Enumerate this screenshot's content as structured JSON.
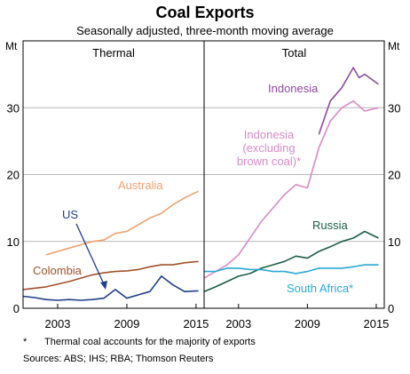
{
  "chart_data": {
    "title": "Coal Exports",
    "subtitle": "Seasonally adjusted, three-month moving average",
    "unit_left": "Mt",
    "unit_right": "Mt",
    "y_ticks": [
      0,
      10,
      20,
      30
    ],
    "ylim": [
      0,
      40
    ],
    "footnote_marker": "*",
    "footnote": "Thermal coal accounts for the majority of exports",
    "sources": "Sources:  ABS; IHS; RBA; Thomson Reuters",
    "colors": {
      "australia": "#F0A070",
      "us": "#1F3E8C",
      "colombia": "#A0522D",
      "indonesia": "#8E4A9E",
      "indonesia_ex": "#D78AC8",
      "russia": "#1E5E45",
      "south_africa": "#2BA8D8"
    },
    "panels": [
      {
        "title": "Thermal",
        "type": "line",
        "x_ticks": [
          "2003",
          "2009",
          "2015"
        ],
        "x_tick_values": [
          2003,
          2009,
          2015
        ],
        "xlim": [
          2000,
          2015.7
        ],
        "series": [
          {
            "key": "australia",
            "name": "Australia",
            "x": [
              2002,
              2003,
              2004,
              2005,
              2006,
              2007,
              2008,
              2009,
              2010,
              2011,
              2012,
              2013,
              2014,
              2015.2
            ],
            "values": [
              8,
              8.5,
              9,
              9.5,
              10,
              10.2,
              11.2,
              11.5,
              12.5,
              13.5,
              14.2,
              15.5,
              16.5,
              17.5
            ]
          },
          {
            "key": "colombia",
            "name": "Colombia",
            "x": [
              2000,
              2001,
              2002,
              2003,
              2004,
              2005,
              2006,
              2007,
              2008,
              2009,
              2010,
              2011,
              2012,
              2013,
              2014,
              2015.2
            ],
            "values": [
              2.8,
              3.0,
              3.2,
              3.6,
              4.0,
              4.5,
              5.0,
              5.3,
              5.5,
              5.6,
              5.8,
              6.2,
              6.5,
              6.5,
              6.8,
              7.0
            ]
          },
          {
            "key": "us",
            "name": "US",
            "x": [
              2000,
              2001,
              2002,
              2003,
              2004,
              2005,
              2006,
              2007,
              2008,
              2009,
              2010,
              2011,
              2012,
              2013,
              2014,
              2015.2
            ],
            "values": [
              1.8,
              1.6,
              1.3,
              1.2,
              1.3,
              1.2,
              1.3,
              1.5,
              2.8,
              1.5,
              2.0,
              2.5,
              4.8,
              3.5,
              2.5,
              2.6
            ]
          }
        ],
        "labels": [
          {
            "series": "australia",
            "text": "Australia"
          },
          {
            "series": "us",
            "text": "US"
          },
          {
            "series": "colombia",
            "text": "Colombia"
          }
        ]
      },
      {
        "title": "Total",
        "type": "line",
        "x_ticks": [
          "2003",
          "2009",
          "2015"
        ],
        "x_tick_values": [
          2003,
          2009,
          2015
        ],
        "xlim": [
          2000,
          2015.7
        ],
        "series": [
          {
            "key": "indonesia",
            "name": "Indonesia",
            "x": [
              2010,
              2011,
              2012,
              2013,
              2013.5,
              2014,
              2015.2
            ],
            "values": [
              26,
              31,
              33,
              36,
              34.5,
              35,
              33.5
            ]
          },
          {
            "key": "indonesia_ex",
            "name": "Indonesia (excluding brown coal)*",
            "x": [
              2000,
              2001,
              2002,
              2003,
              2004,
              2005,
              2006,
              2007,
              2008,
              2009,
              2010,
              2011,
              2012,
              2013,
              2014,
              2015.2
            ],
            "values": [
              4.5,
              5.5,
              6.5,
              8,
              10.5,
              13,
              15,
              17,
              18.5,
              18,
              24,
              28,
              30,
              31,
              29.5,
              30
            ]
          },
          {
            "key": "russia",
            "name": "Russia",
            "x": [
              2000,
              2001,
              2002,
              2003,
              2004,
              2005,
              2006,
              2007,
              2008,
              2009,
              2010,
              2011,
              2012,
              2013,
              2014,
              2015.2
            ],
            "values": [
              2.5,
              3.2,
              4.0,
              4.8,
              5.2,
              6.0,
              6.5,
              7.0,
              7.8,
              7.5,
              8.5,
              9.2,
              10.0,
              10.5,
              11.5,
              10.5
            ]
          },
          {
            "key": "south_africa",
            "name": "South Africa*",
            "x": [
              2000,
              2001,
              2002,
              2003,
              2004,
              2005,
              2006,
              2007,
              2008,
              2009,
              2010,
              2011,
              2012,
              2013,
              2014,
              2015.2
            ],
            "values": [
              5.5,
              5.5,
              6.0,
              6.0,
              5.8,
              5.8,
              5.5,
              5.5,
              5.2,
              5.5,
              6.0,
              6.0,
              6.0,
              6.2,
              6.5,
              6.5
            ]
          }
        ],
        "labels": [
          {
            "series": "indonesia",
            "text": "Indonesia"
          },
          {
            "series": "indonesia_ex",
            "lines": [
              "Indonesia",
              "(excluding",
              "brown coal)*"
            ]
          },
          {
            "series": "russia",
            "text": "Russia"
          },
          {
            "series": "south_africa",
            "text": "South Africa*"
          }
        ]
      }
    ]
  }
}
